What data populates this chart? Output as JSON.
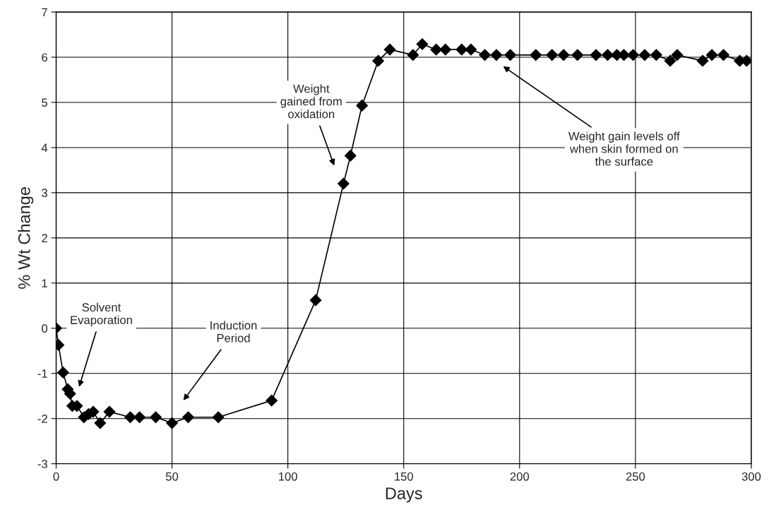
{
  "chart_data": {
    "type": "line",
    "xlabel": "Days",
    "ylabel": "% Wt Change",
    "xlim": [
      0,
      300
    ],
    "ylim": [
      -3,
      7
    ],
    "xticks": [
      0,
      50,
      100,
      150,
      200,
      250,
      300
    ],
    "yticks": [
      -3,
      -2,
      -1,
      0,
      1,
      2,
      3,
      4,
      5,
      6,
      7
    ],
    "grid": true,
    "marker": "diamond",
    "line_style": "solid",
    "legend": false,
    "x": [
      0,
      1,
      3,
      5,
      6,
      7,
      9,
      12,
      14,
      16,
      19,
      23,
      32,
      36,
      43,
      50,
      57,
      70,
      93,
      112,
      124,
      127,
      132,
      139,
      144,
      154,
      158,
      164,
      168,
      175,
      179,
      185,
      190,
      196,
      207,
      214,
      219,
      225,
      233,
      238,
      242,
      245,
      249,
      254,
      259,
      265,
      268,
      279,
      283,
      288,
      295,
      298
    ],
    "series": [
      {
        "color": "#000000",
        "values": [
          0,
          -0.37,
          -0.98,
          -1.35,
          -1.45,
          -1.72,
          -1.72,
          -1.97,
          -1.9,
          -1.85,
          -2.1,
          -1.85,
          -1.97,
          -1.97,
          -1.97,
          -2.1,
          -1.97,
          -1.97,
          -1.6,
          0.62,
          3.2,
          3.82,
          4.93,
          5.92,
          6.17,
          6.05,
          6.29,
          6.17,
          6.17,
          6.17,
          6.17,
          6.05,
          6.05,
          6.05,
          6.05,
          6.05,
          6.05,
          6.05,
          6.05,
          6.05,
          6.05,
          6.05,
          6.05,
          6.05,
          6.05,
          5.92,
          6.05,
          5.92,
          6.05,
          6.05,
          5.92,
          5.92
        ]
      }
    ],
    "annotations": [
      "Solvent\nEvaporation",
      "Induction\nPeriod",
      "Weight\ngained from\noxidation",
      "Weight gain levels off\nwhen skin formed on\nthe surface"
    ]
  }
}
